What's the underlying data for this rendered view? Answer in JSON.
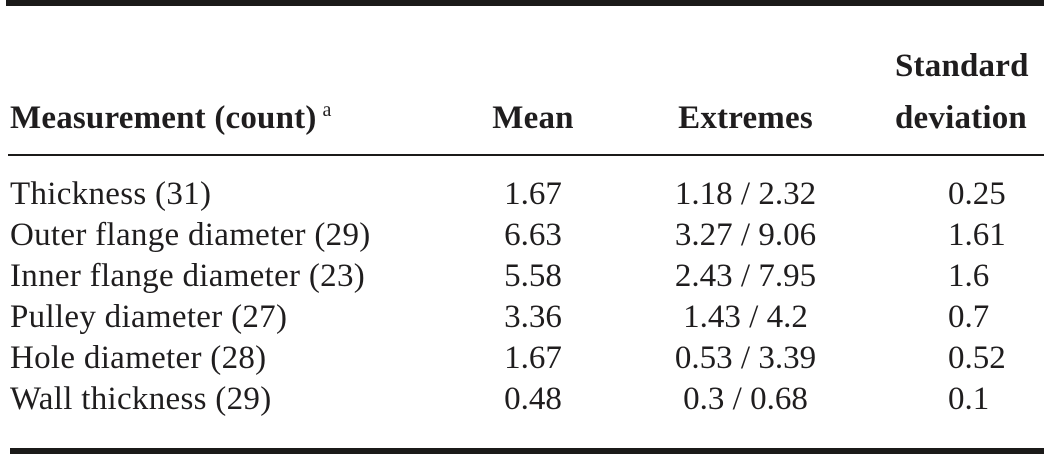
{
  "table": {
    "headers": {
      "measurement": "Measurement (count)",
      "measurement_note": "a",
      "mean": "Mean",
      "extremes": "Extremes",
      "std_dev_line1": "Standard",
      "std_dev_line2": "deviation"
    },
    "rows": [
      {
        "measurement": "Thickness (31)",
        "mean": "1.67",
        "extremes": "1.18 / 2.32",
        "std_dev": "0.25"
      },
      {
        "measurement": "Outer flange diameter (29)",
        "mean": "6.63",
        "extremes": "3.27 / 9.06",
        "std_dev": "1.61"
      },
      {
        "measurement": "Inner flange diameter (23)",
        "mean": "5.58",
        "extremes": "2.43 / 7.95",
        "std_dev": "1.6"
      },
      {
        "measurement": "Pulley diameter (27)",
        "mean": "3.36",
        "extremes": "1.43 / 4.2",
        "std_dev": "0.7"
      },
      {
        "measurement": "Hole diameter (28)",
        "mean": "1.67",
        "extremes": "0.53 / 3.39",
        "std_dev": "0.52"
      },
      {
        "measurement": "Wall thickness (29)",
        "mean": "0.48",
        "extremes": "0.3 / 0.68",
        "std_dev": "0.1"
      }
    ],
    "colors": {
      "text": "#1f1d1e",
      "rule": "#1b1a19",
      "background": "#ffffff"
    }
  }
}
